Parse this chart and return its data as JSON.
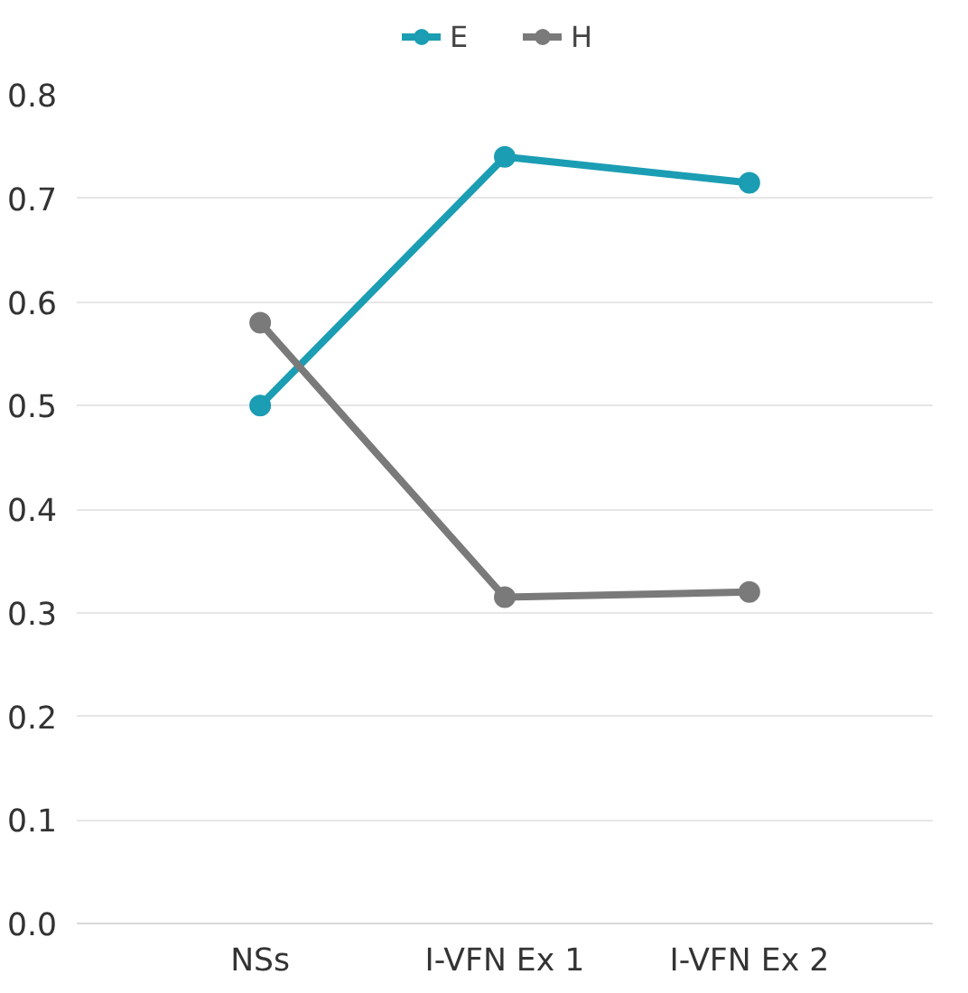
{
  "chart_data": {
    "type": "line",
    "categories": [
      "NSs",
      "I-VFN Ex 1",
      "I-VFN Ex 2"
    ],
    "series": [
      {
        "name": "E",
        "color": "#1b9db3",
        "values": [
          0.5,
          0.74,
          0.715
        ]
      },
      {
        "name": "H",
        "color": "#7a7a7a",
        "values": [
          0.58,
          0.315,
          0.32
        ]
      }
    ],
    "ylim": [
      0,
      0.8
    ],
    "yticks": [
      {
        "value": 0,
        "label": "0.0"
      },
      0.1,
      0.2,
      0.3,
      0.4,
      0.5,
      0.6,
      0.7,
      0.8
    ],
    "grid": "y",
    "legend": "top",
    "marker": "circle"
  }
}
